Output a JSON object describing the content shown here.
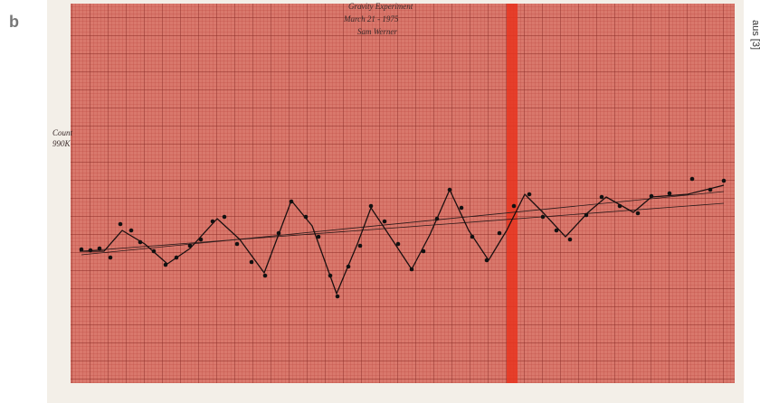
{
  "panel_label": "b",
  "credit": "aus [3]",
  "annotations": {
    "title": "Gravity Experiment",
    "date": "March 21 - 1975",
    "author": "Sam Werner",
    "axis_label": "Count",
    "axis_unit": "990K"
  }
}
